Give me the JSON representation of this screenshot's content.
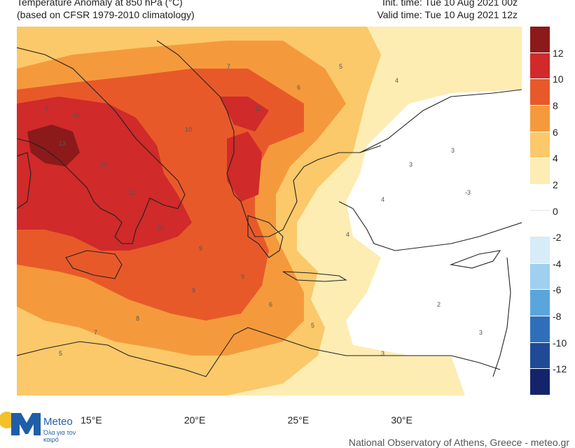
{
  "header": {
    "title": "Temperature Anomaly at 850 hPa (°C)",
    "subtitle": "(based on CFSR 1979-2010 climatology)",
    "init_time": "Init. time: Tue 10 Aug 2021 00z",
    "valid_time": "Valid time: Tue 10 Aug 2021 12z"
  },
  "map": {
    "type": "contour-filled anomaly map",
    "longitude_ticks": [
      "15°E",
      "20°E",
      "25°E",
      "30°E"
    ],
    "longitude_values": [
      15,
      20,
      25,
      30
    ],
    "max_region_value": 13
  },
  "colorbar": {
    "labels": [
      "12",
      "10",
      "8",
      "6",
      "4",
      "2",
      "0",
      "-2",
      "-4",
      "-6",
      "-8",
      "-10",
      "-12"
    ],
    "bins": [
      {
        "range": "12 to 14",
        "color": "#8c1a1a"
      },
      {
        "range": "10 to 12",
        "color": "#d02a2a"
      },
      {
        "range": "8 to 10",
        "color": "#e8592a"
      },
      {
        "range": "6 to 8",
        "color": "#f59a3c"
      },
      {
        "range": "4 to 6",
        "color": "#fbc96a"
      },
      {
        "range": "2 to 4",
        "color": "#fdedb3"
      },
      {
        "range": "0 to 2",
        "color": "#ffffff"
      },
      {
        "range": "-2 to 0",
        "color": "#ffffff"
      },
      {
        "range": "-4 to -2",
        "color": "#d6ecf8"
      },
      {
        "range": "-6 to -4",
        "color": "#9fd0ef"
      },
      {
        "range": "-8 to -6",
        "color": "#5aa6dc"
      },
      {
        "range": "-10 to -8",
        "color": "#2f6fba"
      },
      {
        "range": "-12 to -10",
        "color": "#1f4b96"
      },
      {
        "range": "-14 to -12",
        "color": "#15246a"
      }
    ]
  },
  "logo": {
    "title": "Meteo",
    "subtitle": "Όλα για τον καιρό"
  },
  "footer": "National Observatory of Athens, Greece - meteo.gr"
}
